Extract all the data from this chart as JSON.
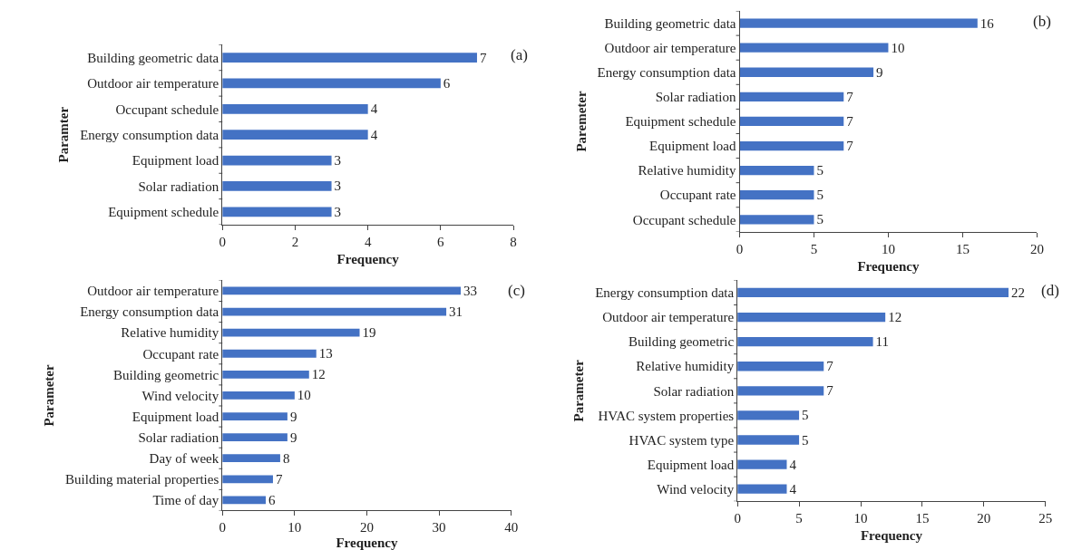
{
  "chart_data": [
    {
      "type": "bar",
      "orientation": "horizontal",
      "xlabel": "Frequency",
      "ylabel": "Paramter",
      "annotations": [
        "(a)"
      ],
      "categories": [
        "Building geometric data",
        "Outdoor air temperature",
        "Occupant schedule",
        "Energy consumption data",
        "Equipment load",
        "Solar radiation",
        "Equipment schedule"
      ],
      "values": [
        7,
        6,
        4,
        4,
        3,
        3,
        3
      ],
      "color": "#4472c4",
      "xlim": [
        0,
        8
      ],
      "xticks": [
        0,
        2,
        4,
        6,
        8
      ],
      "data_labels": true
    },
    {
      "type": "bar",
      "orientation": "horizontal",
      "xlabel": "Frequency",
      "ylabel": "Paremeter",
      "annotations": [
        "(b)"
      ],
      "categories": [
        "Building geometric data",
        "Outdoor air temperature",
        "Energy consumption data",
        "Solar radiation",
        "Equipment schedule",
        "Equipment load",
        "Relative humidity",
        "Occupant rate",
        "Occupant schedule"
      ],
      "values": [
        16,
        10,
        9,
        7,
        7,
        7,
        5,
        5,
        5
      ],
      "color": "#4472c4",
      "xlim": [
        0,
        20
      ],
      "xticks": [
        0,
        5,
        10,
        15,
        20
      ],
      "data_labels": true
    },
    {
      "type": "bar",
      "orientation": "horizontal",
      "xlabel": "Frequency",
      "ylabel": "Parameter",
      "annotations": [
        "(c)"
      ],
      "categories": [
        "Outdoor air temperature",
        "Energy consumption data",
        "Relative humidity",
        "Occupant rate",
        "Building geometric",
        "Wind velocity",
        "Equipment load",
        "Solar radiation",
        "Day of week",
        "Building material properties",
        "Time of day"
      ],
      "values": [
        33,
        31,
        19,
        13,
        12,
        10,
        9,
        9,
        8,
        7,
        6
      ],
      "color": "#4472c4",
      "xlim": [
        0,
        40
      ],
      "xticks": [
        0,
        10,
        20,
        30,
        40
      ],
      "data_labels": true
    },
    {
      "type": "bar",
      "orientation": "horizontal",
      "xlabel": "Frequency",
      "ylabel": "Parameter",
      "annotations": [
        "(d)"
      ],
      "categories": [
        "Energy consumption data",
        "Outdoor air temperature",
        "Building geometric",
        "Relative humidity",
        "Solar radiation",
        "HVAC system properties",
        "HVAC system type",
        "Equipment load",
        "Wind velocity"
      ],
      "values": [
        22,
        12,
        11,
        7,
        7,
        5,
        5,
        4,
        4
      ],
      "color": "#4472c4",
      "xlim": [
        0,
        25
      ],
      "xticks": [
        0,
        5,
        10,
        15,
        20,
        25
      ],
      "data_labels": true
    }
  ]
}
